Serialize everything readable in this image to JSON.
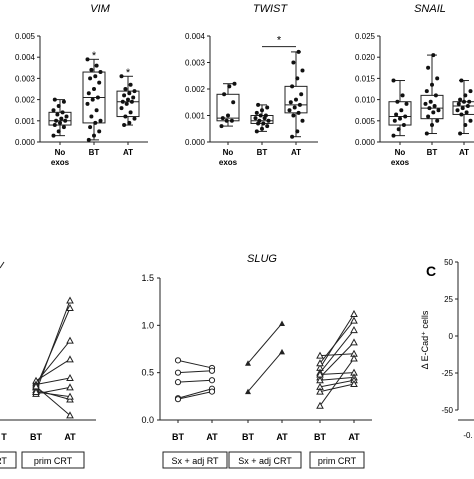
{
  "chart_data": [
    {
      "type": "box",
      "title": "VIM",
      "categories": [
        "No exos",
        "BT",
        "AT"
      ],
      "ylim": [
        0,
        0.005
      ],
      "yticks": [
        "0.000",
        "0.001",
        "0.002",
        "0.003",
        "0.004",
        "0.005"
      ],
      "boxes": [
        {
          "min": 0.0003,
          "q1": 0.0008,
          "median": 0.001,
          "q3": 0.0014,
          "max": 0.002
        },
        {
          "min": 0.0001,
          "q1": 0.0009,
          "median": 0.0021,
          "q3": 0.0033,
          "max": 0.0039
        },
        {
          "min": 0.0008,
          "q1": 0.0012,
          "median": 0.0019,
          "q3": 0.0024,
          "max": 0.0031
        }
      ],
      "points": [
        [
          0.0003,
          0.0005,
          0.0007,
          0.0008,
          0.0009,
          0.001,
          0.001,
          0.0011,
          0.0012,
          0.0013,
          0.0014,
          0.0015,
          0.0017,
          0.0019,
          0.002
        ],
        [
          0.0001,
          0.0003,
          0.0005,
          0.0007,
          0.0009,
          0.001,
          0.0012,
          0.0015,
          0.0018,
          0.002,
          0.0021,
          0.0023,
          0.0025,
          0.0028,
          0.003,
          0.0031,
          0.0033,
          0.0034,
          0.0036,
          0.0039
        ],
        [
          0.0008,
          0.0009,
          0.0011,
          0.0012,
          0.0014,
          0.0016,
          0.0018,
          0.0019,
          0.0019,
          0.002,
          0.0021,
          0.0022,
          0.0023,
          0.0024,
          0.0025,
          0.0027,
          0.0031
        ]
      ],
      "stars": [
        {
          "category": "BT",
          "y": 0.0041,
          "text": "*"
        },
        {
          "category": "AT",
          "y": 0.0033,
          "text": "*"
        }
      ]
    },
    {
      "type": "box",
      "title": "TWIST",
      "categories": [
        "No exos",
        "BT",
        "AT"
      ],
      "ylim": [
        0,
        0.004
      ],
      "yticks": [
        "0.000",
        "0.001",
        "0.002",
        "0.003",
        "0.004"
      ],
      "boxes": [
        {
          "min": 0.0006,
          "q1": 0.0008,
          "median": 0.0009,
          "q3": 0.0018,
          "max": 0.0022
        },
        {
          "min": 0.0004,
          "q1": 0.0007,
          "median": 0.0008,
          "q3": 0.001,
          "max": 0.0014
        },
        {
          "min": 0.0002,
          "q1": 0.0011,
          "median": 0.0014,
          "q3": 0.0021,
          "max": 0.0034
        }
      ],
      "points": [
        [
          0.0006,
          0.0008,
          0.0008,
          0.0009,
          0.001,
          0.0015,
          0.0018,
          0.0021,
          0.0022
        ],
        [
          0.0004,
          0.0005,
          0.0006,
          0.0007,
          0.0007,
          0.0008,
          0.0008,
          0.0009,
          0.0009,
          0.001,
          0.001,
          0.0011,
          0.0012,
          0.0013,
          0.0014
        ],
        [
          0.0002,
          0.0004,
          0.0008,
          0.001,
          0.0011,
          0.0012,
          0.0013,
          0.0014,
          0.0015,
          0.0016,
          0.0018,
          0.0021,
          0.0024,
          0.0027,
          0.003,
          0.0034
        ]
      ],
      "bracket": {
        "from": "BT",
        "to": "AT",
        "y": 0.0036,
        "text": "*"
      }
    },
    {
      "type": "box",
      "title": "SNAIL",
      "categories": [
        "No exos",
        "BT",
        "AT"
      ],
      "ylim": [
        0,
        0.025
      ],
      "yticks": [
        "0.000",
        "0.005",
        "0.010",
        "0.015",
        "0.020",
        "0.025"
      ],
      "boxes": [
        {
          "min": 0.0015,
          "q1": 0.004,
          "median": 0.006,
          "q3": 0.0095,
          "max": 0.0145
        },
        {
          "min": 0.002,
          "q1": 0.0055,
          "median": 0.008,
          "q3": 0.011,
          "max": 0.0205
        },
        {
          "min": 0.002,
          "q1": 0.0065,
          "median": 0.0085,
          "q3": 0.0095,
          "max": 0.0145
        }
      ],
      "points": [
        [
          0.0015,
          0.003,
          0.004,
          0.005,
          0.0055,
          0.006,
          0.0065,
          0.0075,
          0.009,
          0.0095,
          0.011,
          0.0145
        ],
        [
          0.002,
          0.004,
          0.005,
          0.006,
          0.007,
          0.0075,
          0.008,
          0.0085,
          0.009,
          0.0095,
          0.011,
          0.012,
          0.0135,
          0.015,
          0.0175,
          0.0205
        ],
        [
          0.002,
          0.004,
          0.005,
          0.0065,
          0.007,
          0.0075,
          0.008,
          0.0085,
          0.009,
          0.0095,
          0.0095,
          0.01,
          0.011,
          0.012,
          0.0145
        ]
      ]
    },
    {
      "type": "line",
      "title": "",
      "panel": "left-partial",
      "categories": [
        "BT",
        "AT"
      ],
      "ylim": [
        0,
        1.5
      ],
      "groups": [
        {
          "name": "prim CRT",
          "pairs": [
            [
              0.3,
              1.28
            ],
            [
              0.35,
              1.2
            ],
            [
              0.4,
              0.85
            ],
            [
              0.42,
              0.65
            ],
            [
              0.38,
              0.45
            ],
            [
              0.28,
              0.35
            ],
            [
              0.32,
              0.22
            ],
            [
              0.3,
              0.25
            ],
            [
              0.36,
              0.05
            ]
          ]
        }
      ],
      "tick_labels": [
        "BT",
        "AT"
      ],
      "partial_labels": [
        "RT",
        "RT"
      ]
    },
    {
      "type": "line",
      "title": "SLUG",
      "categories": [
        "BT",
        "AT"
      ],
      "ylim": [
        0,
        1.5
      ],
      "yticks": [
        "0.0",
        "0.5",
        "1.0",
        "1.5"
      ],
      "groups": [
        {
          "name": "Sx + adj RT",
          "marker": "circle-open",
          "pairs": [
            [
              0.63,
              0.55
            ],
            [
              0.5,
              0.52
            ],
            [
              0.4,
              0.42
            ],
            [
              0.23,
              0.33
            ],
            [
              0.22,
              0.3
            ]
          ]
        },
        {
          "name": "Sx + adj CRT",
          "marker": "triangle",
          "pairs": [
            [
              0.6,
              1.02
            ],
            [
              0.3,
              0.72
            ]
          ]
        },
        {
          "name": "prim CRT",
          "marker": "triangle-open",
          "pairs": [
            [
              0.68,
              0.7
            ],
            [
              0.55,
              1.12
            ],
            [
              0.6,
              1.05
            ],
            [
              0.5,
              0.95
            ],
            [
              0.45,
              0.82
            ],
            [
              0.48,
              0.5
            ],
            [
              0.42,
              0.45
            ],
            [
              0.35,
              0.42
            ],
            [
              0.3,
              0.38
            ],
            [
              0.15,
              0.65
            ]
          ]
        }
      ]
    },
    {
      "type": "bar",
      "panel_letter": "C",
      "ylabel": "Δ E-Cad⁺ cells",
      "yticks": [
        "50",
        "25",
        "0",
        "-25",
        "-50"
      ],
      "x_partial_tick": "-0."
    }
  ]
}
